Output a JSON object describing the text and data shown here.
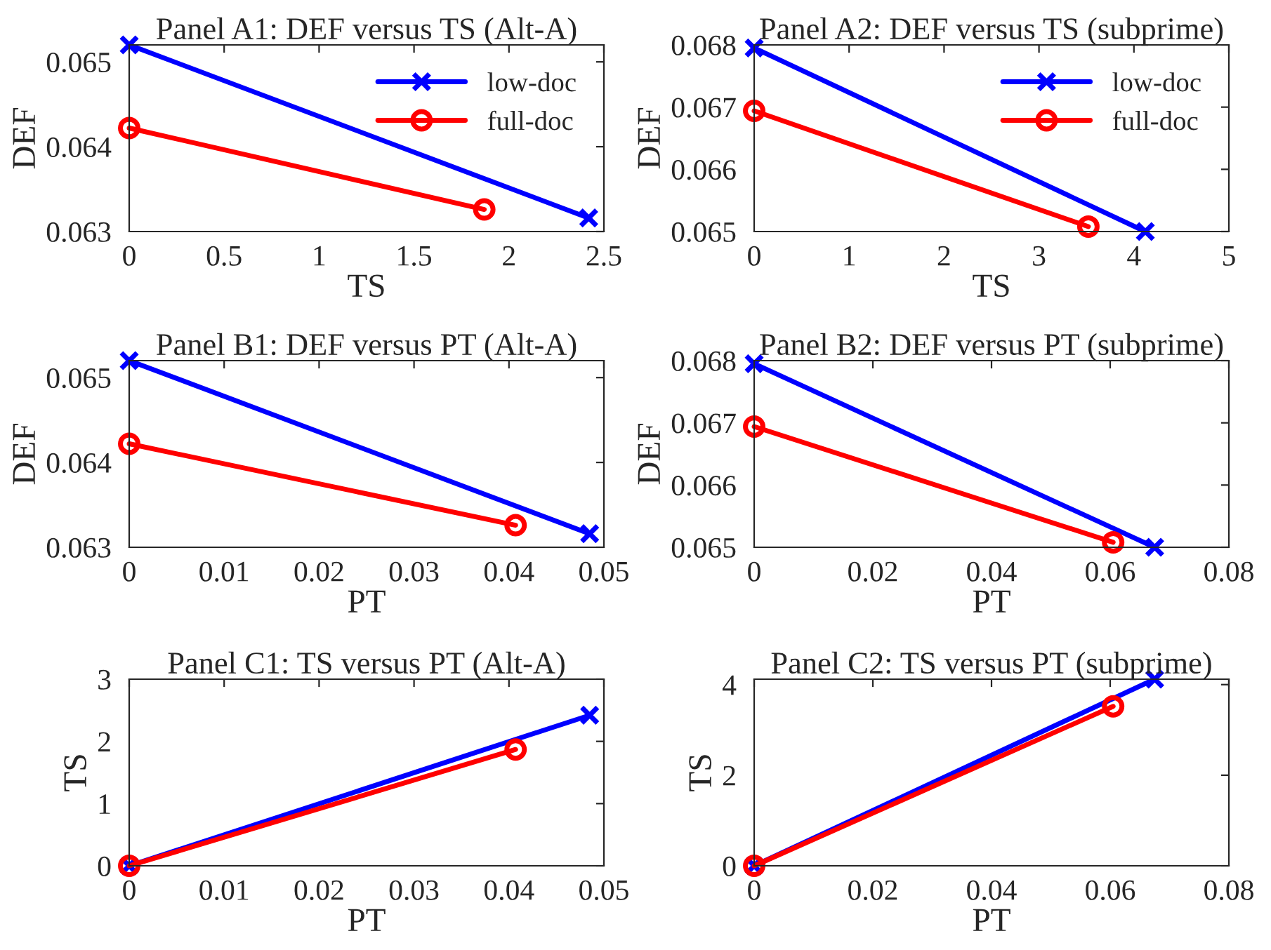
{
  "chart_data": [
    {
      "type": "line",
      "title": "Panel A1: DEF versus TS (Alt-A)",
      "xlabel": "TS",
      "ylabel": "DEF",
      "xlim": [
        0,
        2.5
      ],
      "xticks": [
        0,
        0.5,
        1,
        1.5,
        2,
        2.5
      ],
      "ylim": [
        0.063,
        0.0652
      ],
      "yticks": [
        0.063,
        0.064,
        0.065
      ],
      "grid": false,
      "legend": "top right",
      "line_style": "solid",
      "series": [
        {
          "name": "low-doc",
          "color": "#0000ff",
          "marker": "cross",
          "x": [
            0,
            2.42
          ],
          "values": [
            0.0652,
            0.06316
          ]
        },
        {
          "name": "full-doc",
          "color": "#ff0000",
          "marker": "circle",
          "x": [
            0,
            1.87
          ],
          "values": [
            0.06422,
            0.06326
          ]
        }
      ]
    },
    {
      "type": "line",
      "title": "Panel A2: DEF versus TS (subprime)",
      "xlabel": "TS",
      "ylabel": "DEF",
      "xlim": [
        0,
        5
      ],
      "xticks": [
        0,
        1,
        2,
        3,
        4,
        5
      ],
      "ylim": [
        0.065,
        0.068
      ],
      "yticks": [
        0.065,
        0.066,
        0.067,
        0.068
      ],
      "grid": false,
      "legend": "top right",
      "line_style": "solid",
      "series": [
        {
          "name": "low-doc",
          "color": "#0000ff",
          "marker": "cross",
          "x": [
            0,
            4.12
          ],
          "values": [
            0.06795,
            0.065
          ]
        },
        {
          "name": "full-doc",
          "color": "#ff0000",
          "marker": "circle",
          "x": [
            0,
            3.52
          ],
          "values": [
            0.06694,
            0.06508
          ]
        }
      ]
    },
    {
      "type": "line",
      "title": "Panel B1: DEF versus PT (Alt-A)",
      "xlabel": "PT",
      "ylabel": "DEF",
      "xlim": [
        0,
        0.05
      ],
      "xticks": [
        0,
        0.01,
        0.02,
        0.03,
        0.04,
        0.05
      ],
      "ylim": [
        0.063,
        0.0652
      ],
      "yticks": [
        0.063,
        0.064,
        0.065
      ],
      "grid": false,
      "line_style": "solid",
      "series": [
        {
          "color": "#0000ff",
          "marker": "cross",
          "x": [
            0,
            0.0485
          ],
          "values": [
            0.0652,
            0.06316
          ]
        },
        {
          "color": "#ff0000",
          "marker": "circle",
          "x": [
            0,
            0.0407
          ],
          "values": [
            0.06422,
            0.06326
          ]
        }
      ]
    },
    {
      "type": "line",
      "title": "Panel B2: DEF versus PT (subprime)",
      "xlabel": "PT",
      "ylabel": "DEF",
      "xlim": [
        0,
        0.08
      ],
      "xticks": [
        0,
        0.02,
        0.04,
        0.06,
        0.08
      ],
      "ylim": [
        0.065,
        0.068
      ],
      "yticks": [
        0.065,
        0.066,
        0.067,
        0.068
      ],
      "grid": false,
      "line_style": "solid",
      "series": [
        {
          "color": "#0000ff",
          "marker": "cross",
          "x": [
            0,
            0.0675
          ],
          "values": [
            0.06795,
            0.065
          ]
        },
        {
          "color": "#ff0000",
          "marker": "circle",
          "x": [
            0,
            0.0605
          ],
          "values": [
            0.06694,
            0.06508
          ]
        }
      ]
    },
    {
      "type": "line",
      "title": "Panel C1: TS versus PT (Alt-A)",
      "xlabel": "PT",
      "ylabel": "TS",
      "xlim": [
        0,
        0.05
      ],
      "xticks": [
        0,
        0.01,
        0.02,
        0.03,
        0.04,
        0.05
      ],
      "ylim": [
        0,
        3
      ],
      "yticks": [
        0,
        1,
        2,
        3
      ],
      "grid": false,
      "line_style": "solid",
      "series": [
        {
          "color": "#0000ff",
          "marker": "cross",
          "x": [
            0,
            0.0485
          ],
          "values": [
            0,
            2.42
          ]
        },
        {
          "color": "#ff0000",
          "marker": "circle",
          "x": [
            0,
            0.0407
          ],
          "values": [
            0,
            1.87
          ]
        }
      ]
    },
    {
      "type": "line",
      "title": "Panel C2: TS versus PT (subprime)",
      "xlabel": "PT",
      "ylabel": "TS",
      "xlim": [
        0,
        0.08
      ],
      "xticks": [
        0,
        0.02,
        0.04,
        0.06,
        0.08
      ],
      "ylim": [
        0,
        4.12
      ],
      "yticks": [
        0,
        2,
        4
      ],
      "grid": false,
      "line_style": "solid",
      "series": [
        {
          "color": "#0000ff",
          "marker": "cross",
          "x": [
            0,
            0.0675
          ],
          "values": [
            0,
            4.12
          ]
        },
        {
          "color": "#ff0000",
          "marker": "circle",
          "x": [
            0,
            0.0605
          ],
          "values": [
            0,
            3.52
          ]
        }
      ]
    }
  ]
}
